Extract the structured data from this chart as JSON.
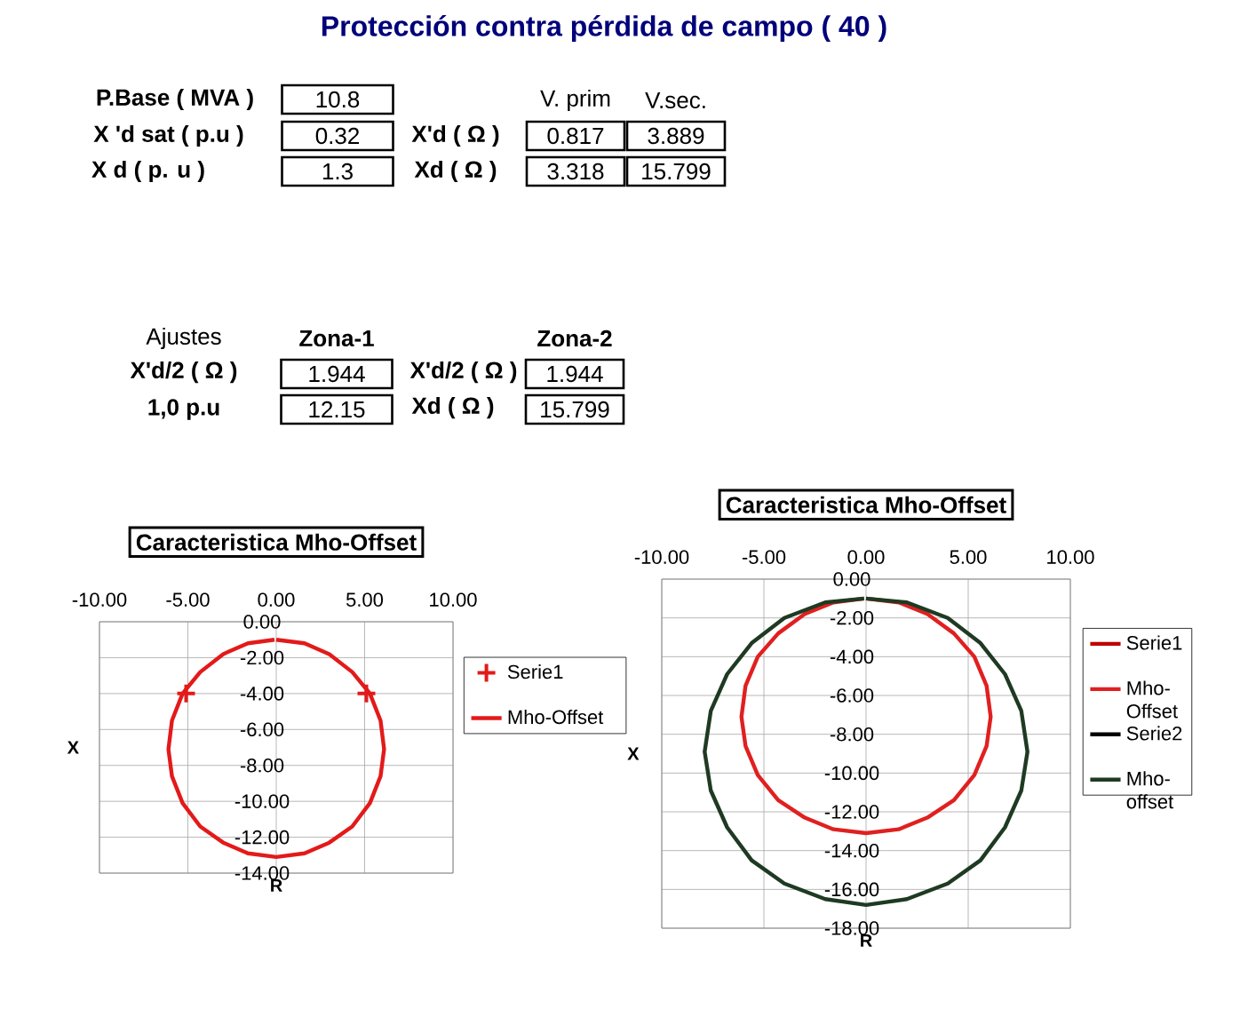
{
  "chart_data": [
    {
      "type": "other",
      "title": "Protección contra pérdida de campo ( 40 )",
      "annotations": [
        "P.Base ( MVA )",
        "10.8",
        "X 'd sat ( p.u )",
        "0.32",
        "X d ( p. u )",
        "1.3",
        "X'd ( Ω )",
        "Xd  ( Ω )",
        "V. prim",
        "V.sec.",
        "0.817",
        "3.889",
        "3.318",
        "15.799",
        "Ajustes",
        "Zona-1",
        "Zona-2",
        "X'd/2 ( Ω )",
        "1.944",
        "1,0 p.u",
        "12.15",
        "X'd/2 ( Ω )",
        "1.944",
        "Xd ( Ω )",
        "15.799"
      ]
    },
    {
      "type": "line",
      "title": "Caracteristica Mho-Offset",
      "xlabel": "R",
      "ylabel": "X",
      "xlim": [
        -10,
        10
      ],
      "ylim": [
        -14,
        0
      ],
      "grid": true,
      "legend": "right",
      "xticks": [
        {
          "value": -10,
          "label": "-10.00"
        },
        {
          "value": -5,
          "label": "-5.00"
        },
        {
          "value": 0,
          "label": "0.00"
        },
        {
          "value": 5,
          "label": "5.00"
        },
        {
          "value": 10,
          "label": "10.00"
        }
      ],
      "yticks": [
        {
          "value": 0,
          "label": "0.00"
        },
        {
          "value": -2,
          "label": "-2.00"
        },
        {
          "value": -4,
          "label": "-4.00"
        },
        {
          "value": -6,
          "label": "-6.00"
        },
        {
          "value": -8,
          "label": "-8.00"
        },
        {
          "value": -10,
          "label": "-10.00"
        },
        {
          "value": -12,
          "label": "-12.00"
        },
        {
          "value": -14,
          "label": "-14.00"
        }
      ],
      "series": [
        {
          "name": "Serie1",
          "type": "scatter",
          "marker": "cross",
          "color": "#e31a1a",
          "x": [
            -5.1,
            5.1
          ],
          "values": [
            -4,
            -4
          ]
        },
        {
          "name": "Mho-Offset",
          "color": "#e31a1a",
          "x": [
            0,
            1.6,
            3.0,
            4.3,
            5.3,
            5.9,
            6.1,
            5.9,
            5.3,
            4.3,
            3.0,
            1.6,
            0,
            -1.6,
            -3.0,
            -4.3,
            -5.3,
            -5.9,
            -6.1,
            -5.9,
            -5.3,
            -4.3,
            -3.0,
            -1.6,
            -0.1
          ],
          "values": [
            -1.0,
            -1.2,
            -1.8,
            -2.8,
            -4.0,
            -5.5,
            -7.1,
            -8.6,
            -10.1,
            -11.4,
            -12.3,
            -12.9,
            -13.1,
            -12.9,
            -12.3,
            -11.4,
            -10.1,
            -8.6,
            -7.1,
            -5.5,
            -4.0,
            -2.8,
            -1.8,
            -1.2,
            -1.0
          ]
        }
      ]
    },
    {
      "type": "line",
      "title": "Caracteristica Mho-Offset",
      "xlabel": "R",
      "ylabel": "X",
      "xlim": [
        -10,
        10
      ],
      "ylim": [
        -18,
        0
      ],
      "grid": true,
      "legend": "right",
      "xticks": [
        {
          "value": -10,
          "label": "-10.00"
        },
        {
          "value": -5,
          "label": "-5.00"
        },
        {
          "value": 0,
          "label": "0.00"
        },
        {
          "value": 5,
          "label": "5.00"
        },
        {
          "value": 10,
          "label": "10.00"
        }
      ],
      "yticks": [
        {
          "value": 0,
          "label": "0.00"
        },
        {
          "value": -2,
          "label": "-2.00"
        },
        {
          "value": -4,
          "label": "-4.00"
        },
        {
          "value": -6,
          "label": "-6.00"
        },
        {
          "value": -8,
          "label": "-8.00"
        },
        {
          "value": -10,
          "label": "-10.00"
        },
        {
          "value": -12,
          "label": "-12.00"
        },
        {
          "value": -14,
          "label": "-14.00"
        },
        {
          "value": -16,
          "label": "-16.00"
        },
        {
          "value": -18,
          "label": "-18.00"
        }
      ],
      "series": [
        {
          "name": "Serie1",
          "color": "#c00000"
        },
        {
          "name": "Mho-Offset",
          "color": "#e02020",
          "x": [
            0,
            1.6,
            3.0,
            4.3,
            5.3,
            5.9,
            6.1,
            5.9,
            5.3,
            4.3,
            3.0,
            1.6,
            0,
            -1.6,
            -3.0,
            -4.3,
            -5.3,
            -5.9,
            -6.1,
            -5.9,
            -5.3,
            -4.3,
            -3.0,
            -1.6,
            -0.1
          ],
          "values": [
            -1.0,
            -1.2,
            -1.8,
            -2.8,
            -4.0,
            -5.5,
            -7.1,
            -8.6,
            -10.1,
            -11.4,
            -12.3,
            -12.9,
            -13.1,
            -12.9,
            -12.3,
            -11.4,
            -10.1,
            -8.6,
            -7.1,
            -5.5,
            -4.0,
            -2.8,
            -1.8,
            -1.2,
            -1.0
          ]
        },
        {
          "name": "Serie2",
          "color": "#000000"
        },
        {
          "name": "Mho-offset",
          "color": "#1f3a22",
          "x": [
            0,
            2.0,
            4.0,
            5.6,
            6.8,
            7.6,
            7.9,
            7.6,
            6.8,
            5.6,
            4.0,
            2.0,
            0,
            -2.0,
            -4.0,
            -5.6,
            -6.8,
            -7.6,
            -7.9,
            -7.6,
            -6.8,
            -5.6,
            -4.0,
            -2.0,
            -0.1
          ],
          "values": [
            -1.0,
            -1.2,
            -2.0,
            -3.3,
            -4.9,
            -6.8,
            -8.9,
            -10.9,
            -12.8,
            -14.5,
            -15.7,
            -16.5,
            -16.8,
            -16.5,
            -15.7,
            -14.5,
            -12.8,
            -10.9,
            -8.9,
            -6.8,
            -4.9,
            -3.3,
            -2.0,
            -1.2,
            -1.0
          ]
        }
      ]
    }
  ]
}
